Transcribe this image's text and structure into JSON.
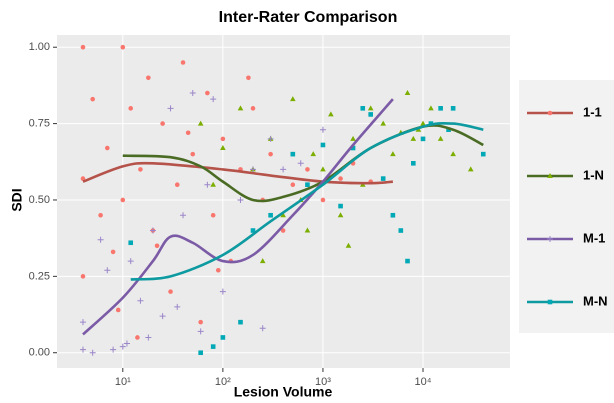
{
  "chart_data": {
    "type": "scatter",
    "title": "Inter-Rater Comparison",
    "x_label": "Lesion Volume",
    "y_label": "SDI",
    "x_log": true,
    "grid": true,
    "legend_position": "right",
    "xlim": [
      2.2,
      74000
    ],
    "ylim": [
      -0.05,
      1.04
    ],
    "xticks": [
      {
        "value": 10,
        "label": "10¹"
      },
      {
        "value": 100,
        "label": "10²"
      },
      {
        "value": 1000,
        "label": "10³"
      },
      {
        "value": 10000,
        "label": "10⁴"
      }
    ],
    "yticks": [
      {
        "value": 0,
        "label": "0.00"
      },
      {
        "value": 0.25,
        "label": "0.25"
      },
      {
        "value": 0.5,
        "label": "0.50"
      },
      {
        "value": 0.75,
        "label": "0.75"
      },
      {
        "value": 1,
        "label": "1.00"
      }
    ],
    "series": [
      {
        "name": "1-1",
        "color": "#f8766d",
        "line_color": "#b5524a",
        "marker": "circle",
        "x": [
          4,
          4,
          4,
          5,
          6,
          7,
          8,
          10,
          10,
          12,
          15,
          18,
          20,
          25,
          30,
          35,
          40,
          50,
          60,
          70,
          80,
          100,
          120,
          150,
          200,
          250,
          300,
          400,
          500,
          700,
          1000,
          1500,
          2000,
          3000,
          9,
          14,
          22,
          45,
          90,
          180
        ],
        "y": [
          1.0,
          0.57,
          0.25,
          0.83,
          0.45,
          0.67,
          0.33,
          1.0,
          0.5,
          0.8,
          0.6,
          0.9,
          0.4,
          0.75,
          0.2,
          0.55,
          0.95,
          0.65,
          0.1,
          0.85,
          0.45,
          0.7,
          0.3,
          0.6,
          0.8,
          0.5,
          0.65,
          0.4,
          0.55,
          0.6,
          0.5,
          0.57,
          0.62,
          0.56,
          0.14,
          0.05,
          0.35,
          0.72,
          0.27,
          0.9
        ],
        "smooth_x": [
          4,
          10,
          20,
          100,
          300,
          1000,
          3000,
          5000
        ],
        "smooth_y": [
          0.56,
          0.61,
          0.62,
          0.6,
          0.58,
          0.56,
          0.555,
          0.56
        ]
      },
      {
        "name": "1-N",
        "color": "#7cae00",
        "line_color": "#4a6b23",
        "marker": "triangle",
        "x": [
          60,
          80,
          100,
          150,
          200,
          300,
          400,
          500,
          600,
          800,
          1000,
          1200,
          1500,
          2000,
          2500,
          3000,
          4000,
          5000,
          6000,
          7000,
          8000,
          10000,
          12000,
          15000,
          20000,
          30000,
          250,
          700,
          1800,
          9000
        ],
        "y": [
          0.75,
          0.55,
          0.67,
          0.8,
          0.6,
          0.7,
          0.45,
          0.83,
          0.5,
          0.65,
          0.6,
          0.78,
          0.45,
          0.7,
          0.55,
          0.8,
          0.75,
          0.65,
          0.72,
          0.85,
          0.7,
          0.75,
          0.8,
          0.7,
          0.65,
          0.6,
          0.3,
          0.4,
          0.35,
          0.73
        ],
        "smooth_x": [
          10,
          30,
          60,
          100,
          200,
          400,
          1000,
          3000,
          10000,
          20000,
          40000
        ],
        "smooth_y": [
          0.645,
          0.64,
          0.61,
          0.56,
          0.5,
          0.51,
          0.56,
          0.67,
          0.74,
          0.73,
          0.68
        ]
      },
      {
        "name": "M-1",
        "color": "#9b86c9",
        "line_color": "#7b5aa6",
        "marker": "plus",
        "x": [
          4,
          5,
          6,
          8,
          10,
          12,
          15,
          18,
          20,
          25,
          30,
          40,
          50,
          60,
          80,
          100,
          150,
          200,
          300,
          400,
          600,
          1000,
          4,
          7,
          11,
          35,
          70,
          250
        ],
        "y": [
          0.01,
          0.0,
          0.37,
          0.01,
          0.02,
          0.3,
          0.17,
          0.05,
          0.4,
          0.12,
          0.8,
          0.45,
          0.85,
          0.07,
          0.83,
          0.2,
          0.5,
          0.6,
          0.7,
          0.6,
          0.62,
          0.73,
          0.1,
          0.27,
          0.03,
          0.15,
          0.55,
          0.08
        ],
        "smooth_x": [
          4,
          10,
          20,
          30,
          50,
          100,
          200,
          500,
          1000,
          2000,
          5000
        ],
        "smooth_y": [
          0.06,
          0.18,
          0.3,
          0.38,
          0.36,
          0.3,
          0.32,
          0.45,
          0.56,
          0.68,
          0.83
        ]
      },
      {
        "name": "M-N",
        "color": "#00a9b5",
        "line_color": "#0d9aa0",
        "marker": "square",
        "x": [
          12,
          60,
          80,
          100,
          150,
          200,
          300,
          500,
          700,
          1000,
          1500,
          2000,
          3000,
          4000,
          5000,
          6000,
          8000,
          10000,
          12000,
          15000,
          20000,
          40000,
          2500,
          7000,
          18000
        ],
        "y": [
          0.36,
          0.0,
          0.02,
          0.05,
          0.1,
          0.4,
          0.45,
          0.65,
          0.55,
          0.68,
          0.48,
          0.67,
          0.78,
          0.57,
          0.45,
          0.4,
          0.62,
          0.7,
          0.75,
          0.8,
          0.8,
          0.65,
          0.8,
          0.3,
          0.73
        ],
        "smooth_x": [
          12,
          30,
          100,
          300,
          1000,
          3000,
          10000,
          20000,
          40000
        ],
        "smooth_y": [
          0.24,
          0.25,
          0.32,
          0.43,
          0.55,
          0.67,
          0.74,
          0.75,
          0.73
        ]
      }
    ]
  }
}
